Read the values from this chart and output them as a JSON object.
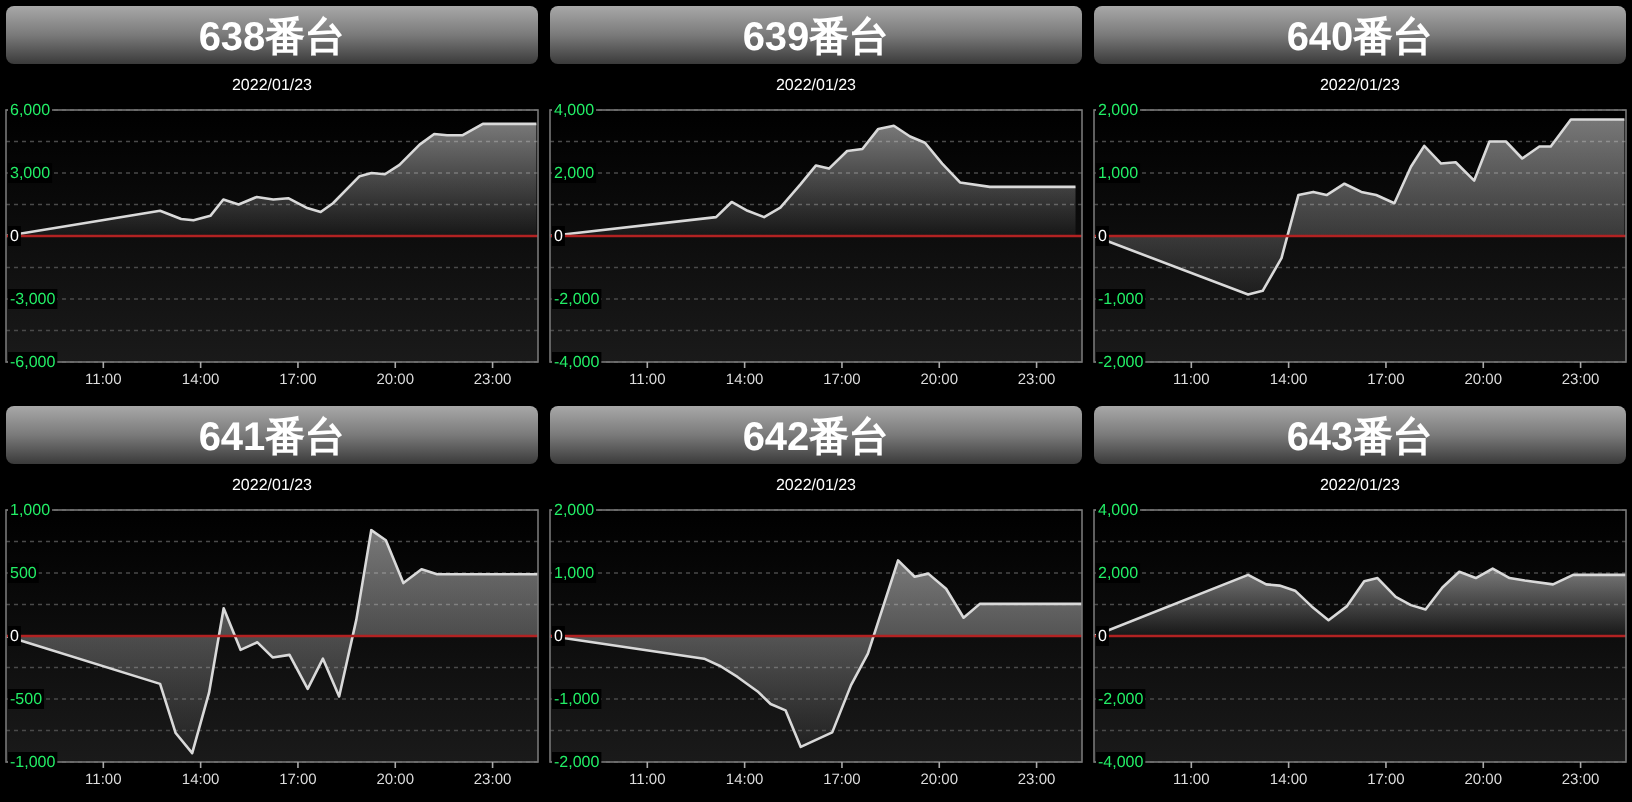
{
  "chart_data": [
    {
      "type": "area",
      "title": "638番台",
      "subtitle": "2022/01/23",
      "color": "#d9d9d9",
      "grid": "y",
      "xlim": [
        8,
        24.4
      ],
      "xticks": [
        {
          "value": 11,
          "label": "11:00"
        },
        {
          "value": 14,
          "label": "14:00"
        },
        {
          "value": 17,
          "label": "17:00"
        },
        {
          "value": 20,
          "label": "20:00"
        },
        {
          "value": 23,
          "label": "23:00"
        }
      ],
      "ylim": [
        -6000,
        6000
      ],
      "yticks": [
        {
          "value": 6000,
          "label": "6,000"
        },
        {
          "value": 4500,
          "label": null
        },
        {
          "value": 3000,
          "label": "3,000"
        },
        {
          "value": 1500,
          "label": null
        },
        0,
        {
          "value": -1500,
          "label": null
        },
        {
          "value": -3000,
          "label": "-3,000"
        },
        {
          "value": -4500,
          "label": null
        },
        {
          "value": -6000,
          "label": "-6,000"
        }
      ],
      "ref_lines": [
        {
          "axis": "y",
          "value": 0,
          "color": "#b22222"
        }
      ],
      "x": [
        8,
        12.75,
        13.4,
        13.78,
        14.3,
        14.7,
        15.17,
        15.73,
        16.24,
        16.7,
        17.26,
        17.7,
        18.08,
        18.9,
        19.27,
        19.68,
        20.13,
        20.75,
        21.2,
        21.6,
        22.08,
        22.7,
        24.35
      ],
      "values": [
        0,
        1200,
        810,
        750,
        960,
        1740,
        1500,
        1860,
        1740,
        1800,
        1350,
        1140,
        1560,
        2850,
        3000,
        2940,
        3390,
        4350,
        4860,
        4800,
        4800,
        5340,
        5340
      ]
    },
    {
      "type": "area",
      "title": "639番台",
      "subtitle": "2022/01/23",
      "color": "#d9d9d9",
      "grid": "y",
      "xlim": [
        8,
        24.4
      ],
      "xticks": [
        {
          "value": 11,
          "label": "11:00"
        },
        {
          "value": 14,
          "label": "14:00"
        },
        {
          "value": 17,
          "label": "17:00"
        },
        {
          "value": 20,
          "label": "20:00"
        },
        {
          "value": 23,
          "label": "23:00"
        }
      ],
      "ylim": [
        -4000,
        4000
      ],
      "yticks": [
        {
          "value": 4000,
          "label": "4,000"
        },
        {
          "value": 3000,
          "label": null
        },
        {
          "value": 2000,
          "label": "2,000"
        },
        {
          "value": 1000,
          "label": null
        },
        0,
        {
          "value": -1000,
          "label": null
        },
        {
          "value": -2000,
          "label": "-2,000"
        },
        {
          "value": -3000,
          "label": null
        },
        {
          "value": -4000,
          "label": "-4,000"
        }
      ],
      "ref_lines": [
        {
          "axis": "y",
          "value": 0,
          "color": "#b22222"
        }
      ],
      "x": [
        8,
        13.12,
        13.6,
        14.09,
        14.6,
        15.1,
        15.72,
        16.2,
        16.6,
        17.16,
        17.63,
        18.12,
        18.6,
        19.1,
        19.56,
        20.09,
        20.64,
        21.56,
        24.2
      ],
      "values": [
        0,
        600,
        1080,
        800,
        600,
        900,
        1640,
        2240,
        2140,
        2700,
        2760,
        3400,
        3500,
        3160,
        2960,
        2300,
        1700,
        1560,
        1560
      ]
    },
    {
      "type": "area",
      "title": "640番台",
      "subtitle": "2022/01/23",
      "color": "#d9d9d9",
      "grid": "y",
      "xlim": [
        8,
        24.4
      ],
      "xticks": [
        {
          "value": 11,
          "label": "11:00"
        },
        {
          "value": 14,
          "label": "14:00"
        },
        {
          "value": 17,
          "label": "17:00"
        },
        {
          "value": 20,
          "label": "20:00"
        },
        {
          "value": 23,
          "label": "23:00"
        }
      ],
      "ylim": [
        -2000,
        2000
      ],
      "yticks": [
        {
          "value": 2000,
          "label": "2,000"
        },
        {
          "value": 1500,
          "label": null
        },
        {
          "value": 1000,
          "label": "1,000"
        },
        {
          "value": 500,
          "label": null
        },
        0,
        {
          "value": -500,
          "label": null
        },
        {
          "value": -1000,
          "label": "-1,000"
        },
        {
          "value": -1500,
          "label": null
        },
        {
          "value": -2000,
          "label": "-2,000"
        }
      ],
      "ref_lines": [
        {
          "axis": "y",
          "value": 0,
          "color": "#b22222"
        }
      ],
      "x": [
        8,
        12.75,
        13.2,
        13.78,
        14.3,
        14.76,
        15.17,
        15.72,
        16.24,
        16.7,
        17.26,
        17.77,
        18.18,
        18.7,
        19.15,
        19.72,
        20.19,
        20.7,
        21.2,
        21.73,
        22.08,
        22.7,
        24.35
      ],
      "values": [
        0,
        -930,
        -870,
        -350,
        650,
        700,
        650,
        830,
        700,
        650,
        520,
        1100,
        1430,
        1150,
        1170,
        880,
        1500,
        1500,
        1230,
        1420,
        1420,
        1850,
        1850
      ]
    },
    {
      "type": "area",
      "title": "641番台",
      "subtitle": "2022/01/23",
      "color": "#d9d9d9",
      "grid": "y",
      "xlim": [
        8,
        24.4
      ],
      "xticks": [
        {
          "value": 11,
          "label": "11:00"
        },
        {
          "value": 14,
          "label": "14:00"
        },
        {
          "value": 17,
          "label": "17:00"
        },
        {
          "value": 20,
          "label": "20:00"
        },
        {
          "value": 23,
          "label": "23:00"
        }
      ],
      "ylim": [
        -1000,
        1000
      ],
      "yticks": [
        {
          "value": 1000,
          "label": "1,000"
        },
        {
          "value": 750,
          "label": null
        },
        500,
        {
          "value": 250,
          "label": null
        },
        0,
        {
          "value": -250,
          "label": null
        },
        -500,
        {
          "value": -750,
          "label": null
        },
        {
          "value": -1000,
          "label": "-1,000"
        }
      ],
      "ref_lines": [
        {
          "axis": "y",
          "value": 0,
          "color": "#b22222"
        }
      ],
      "x": [
        8,
        12.75,
        13.23,
        13.74,
        14.26,
        14.71,
        15.23,
        15.75,
        16.22,
        16.74,
        17.3,
        17.77,
        18.27,
        18.8,
        19.26,
        19.71,
        20.25,
        20.81,
        21.29,
        24.4
      ],
      "values": [
        0,
        -380,
        -770,
        -930,
        -450,
        220,
        -110,
        -50,
        -170,
        -150,
        -420,
        -180,
        -480,
        130,
        840,
        760,
        420,
        530,
        490,
        490
      ]
    },
    {
      "type": "area",
      "title": "642番台",
      "subtitle": "2022/01/23",
      "color": "#d9d9d9",
      "grid": "y",
      "xlim": [
        8,
        24.4
      ],
      "xticks": [
        {
          "value": 11,
          "label": "11:00"
        },
        {
          "value": 14,
          "label": "14:00"
        },
        {
          "value": 17,
          "label": "17:00"
        },
        {
          "value": 20,
          "label": "20:00"
        },
        {
          "value": 23,
          "label": "23:00"
        }
      ],
      "ylim": [
        -2000,
        2000
      ],
      "yticks": [
        {
          "value": 2000,
          "label": "2,000"
        },
        {
          "value": 1500,
          "label": null
        },
        {
          "value": 1000,
          "label": "1,000"
        },
        {
          "value": 500,
          "label": null
        },
        0,
        {
          "value": -500,
          "label": null
        },
        {
          "value": -1000,
          "label": "-1,000"
        },
        {
          "value": -1500,
          "label": null
        },
        {
          "value": -2000,
          "label": "-2,000"
        }
      ],
      "ref_lines": [
        {
          "axis": "y",
          "value": 0,
          "color": "#b22222"
        }
      ],
      "x": [
        8,
        12.75,
        13.26,
        13.78,
        14.4,
        14.8,
        15.26,
        15.73,
        16.7,
        17.28,
        17.8,
        18.73,
        19.24,
        19.66,
        20.21,
        20.75,
        21.25,
        24.4
      ],
      "values": [
        0,
        -360,
        -480,
        -650,
        -880,
        -1080,
        -1180,
        -1760,
        -1530,
        -780,
        -280,
        1200,
        940,
        990,
        750,
        290,
        510,
        510
      ]
    },
    {
      "type": "area",
      "title": "643番台",
      "subtitle": "2022/01/23",
      "color": "#d9d9d9",
      "grid": "y",
      "xlim": [
        8,
        24.4
      ],
      "xticks": [
        {
          "value": 11,
          "label": "11:00"
        },
        {
          "value": 14,
          "label": "14:00"
        },
        {
          "value": 17,
          "label": "17:00"
        },
        {
          "value": 20,
          "label": "20:00"
        },
        {
          "value": 23,
          "label": "23:00"
        }
      ],
      "ylim": [
        -4000,
        4000
      ],
      "yticks": [
        {
          "value": 4000,
          "label": "4,000"
        },
        {
          "value": 3000,
          "label": null
        },
        {
          "value": 2000,
          "label": "2,000"
        },
        {
          "value": 1000,
          "label": null
        },
        0,
        {
          "value": -1000,
          "label": null
        },
        {
          "value": -2000,
          "label": "-2,000"
        },
        {
          "value": -3000,
          "label": null
        },
        {
          "value": -4000,
          "label": "-4,000"
        }
      ],
      "ref_lines": [
        {
          "axis": "y",
          "value": 0,
          "color": "#b22222"
        }
      ],
      "x": [
        8,
        12.75,
        13.31,
        13.72,
        14.2,
        14.71,
        15.23,
        15.79,
        16.33,
        16.74,
        17.3,
        17.77,
        18.22,
        18.74,
        19.26,
        19.77,
        20.29,
        20.81,
        21.28,
        22.15,
        22.77,
        24.4
      ],
      "values": [
        0,
        1940,
        1640,
        1600,
        1440,
        940,
        500,
        940,
        1740,
        1840,
        1240,
        980,
        840,
        1540,
        2040,
        1840,
        2140,
        1840,
        1760,
        1640,
        1940,
        1940
      ]
    }
  ]
}
